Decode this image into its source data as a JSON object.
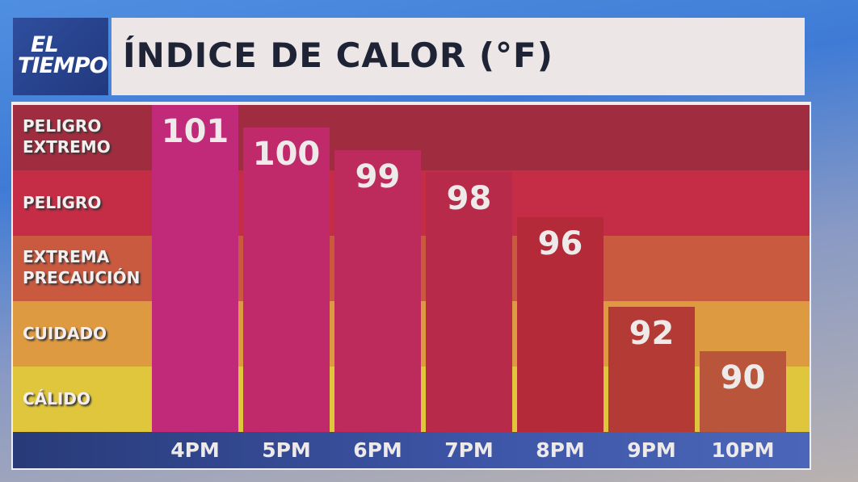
{
  "logo": {
    "line1": "EL",
    "line2": "TIEMPO"
  },
  "chart_data": {
    "type": "bar",
    "title": "ÍNDICE DE CALOR (°F)",
    "categories": [
      "4PM",
      "5PM",
      "6PM",
      "7PM",
      "8PM",
      "9PM",
      "10PM"
    ],
    "values": [
      101,
      100,
      99,
      98,
      96,
      92,
      90
    ],
    "bar_colors": [
      "#c02a78",
      "#c12a6a",
      "#bd2a5c",
      "#b82a4a",
      "#b42a38",
      "#b43a36",
      "#b9553a"
    ],
    "bands": [
      {
        "label1": "PELIGRO",
        "label2": "EXTREMO",
        "color": "#a02d3f"
      },
      {
        "label1": "PELIGRO",
        "label2": "",
        "color": "#c42d45"
      },
      {
        "label1": "EXTREMA",
        "label2": "PRECAUCIÓN",
        "color": "#c95a40"
      },
      {
        "label1": "CUIDADO",
        "label2": "",
        "color": "#dd9a40"
      },
      {
        "label1": "CÁLIDO",
        "label2": "",
        "color": "#e0c63c"
      }
    ]
  }
}
